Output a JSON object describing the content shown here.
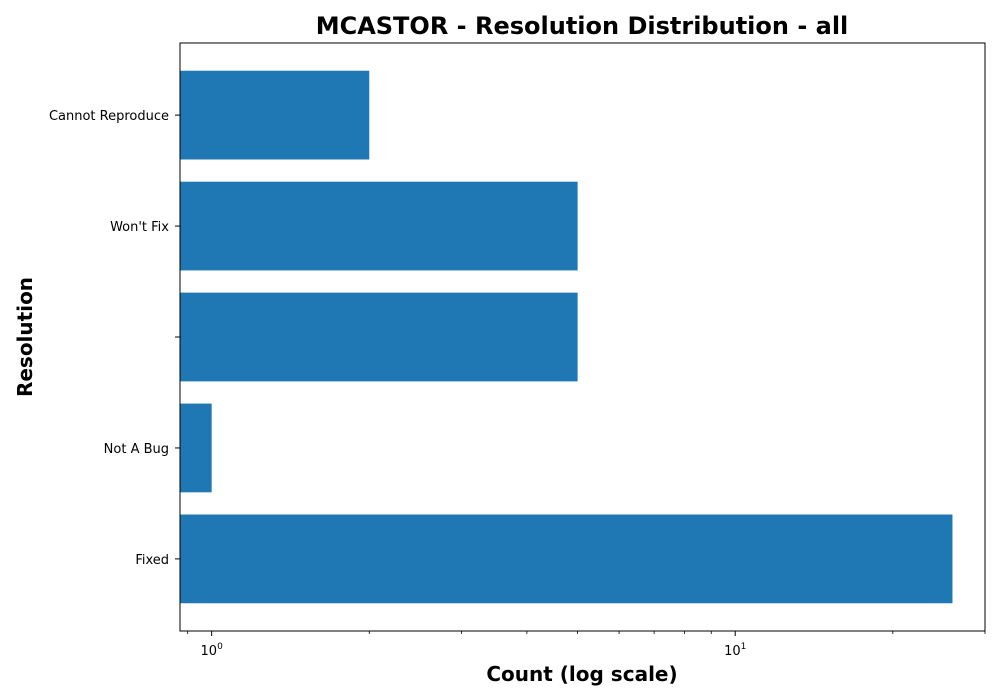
{
  "chart_data": {
    "type": "bar",
    "orientation": "horizontal",
    "title": "MCASTOR - Resolution Distribution - all",
    "xlabel": "Count (log scale)",
    "ylabel": "Resolution",
    "x_scale": "log",
    "xlim": [
      0.87,
      30
    ],
    "x_ticks": [
      {
        "value": 1,
        "base": "10",
        "exp": "0"
      },
      {
        "value": 10,
        "base": "10",
        "exp": "1"
      }
    ],
    "categories": [
      "Fixed",
      "Not A Bug",
      "",
      "Won't Fix",
      "Cannot Reproduce"
    ],
    "values": [
      26,
      1,
      5,
      5,
      2
    ],
    "bar_color": "#1f77b4",
    "grid": false
  }
}
